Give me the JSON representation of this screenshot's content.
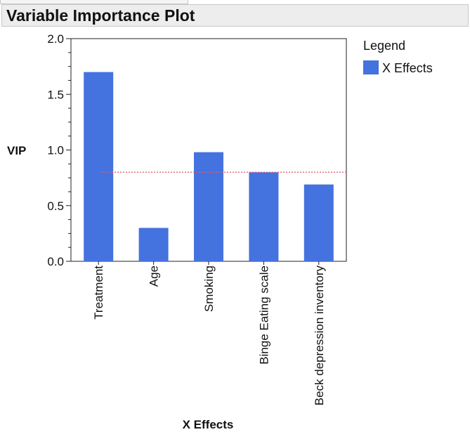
{
  "panel": {
    "title": "Variable Importance Plot"
  },
  "chart_data": {
    "type": "bar",
    "categories": [
      "Treatment",
      "Age",
      "Smoking",
      "Binge Eating scale",
      "Beck depression inventory"
    ],
    "series": [
      {
        "name": "X Effects",
        "values": [
          1.7,
          0.3,
          0.98,
          0.8,
          0.69
        ]
      }
    ],
    "xlabel": "X Effects",
    "ylabel": "VIP",
    "ylim": [
      0,
      2.0
    ],
    "yticks": [
      0.0,
      0.5,
      1.0,
      1.5,
      2.0
    ],
    "ytick_labels": [
      "0.0",
      "0.5",
      "1.0",
      "1.5",
      "2.0"
    ],
    "reference_line": {
      "value": 0.8,
      "color": "#e06070",
      "style": "dotted"
    },
    "bar_color": "#4472de",
    "grid": false,
    "legend": {
      "title": "Legend",
      "position": "right"
    }
  }
}
